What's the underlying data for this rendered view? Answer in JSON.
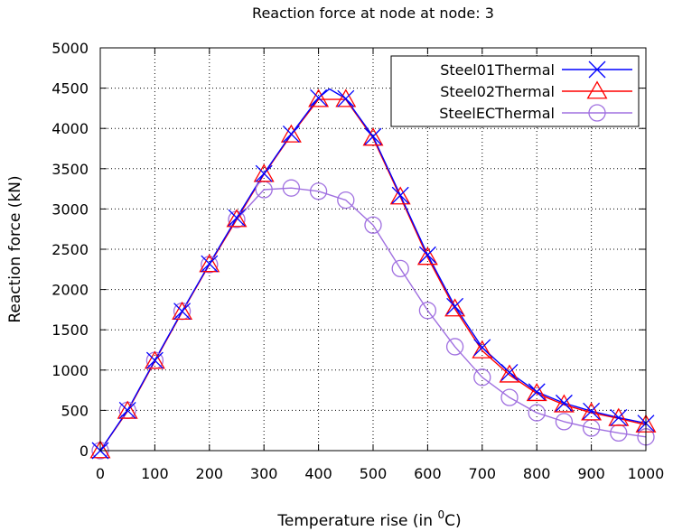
{
  "chart_data": {
    "type": "line",
    "title": "Reaction force at node at node: 3",
    "xlabel_prefix": "Temperature rise (in ",
    "xlabel_sup": "0",
    "xlabel_suffix": "C)",
    "ylabel": "Reaction force  (kN)",
    "xlim": [
      0,
      1000
    ],
    "ylim": [
      0,
      5000
    ],
    "xticks": [
      0,
      100,
      200,
      300,
      400,
      500,
      600,
      700,
      800,
      900,
      1000
    ],
    "yticks": [
      0,
      500,
      1000,
      1500,
      2000,
      2500,
      3000,
      3500,
      4000,
      4500,
      5000
    ],
    "grid": true,
    "legend_position": "top-right",
    "series": [
      {
        "name": "Steel01Thermal",
        "color": "#0000ff",
        "marker": "x-icon",
        "x": [
          0,
          50,
          100,
          150,
          200,
          250,
          300,
          350,
          400,
          420,
          450,
          500,
          550,
          600,
          650,
          700,
          750,
          800,
          850,
          900,
          950,
          1000
        ],
        "y": [
          0,
          500,
          1120,
          1730,
          2320,
          2890,
          3440,
          3930,
          4380,
          4490,
          4370,
          3900,
          3170,
          2430,
          1790,
          1280,
          970,
          730,
          590,
          490,
          410,
          340
        ]
      },
      {
        "name": "Steel02Thermal",
        "color": "#ff0000",
        "marker": "triangle-icon",
        "x": [
          0,
          50,
          100,
          150,
          200,
          250,
          300,
          350,
          400,
          450,
          500,
          550,
          600,
          650,
          700,
          750,
          800,
          850,
          900,
          950,
          1000
        ],
        "y": [
          0,
          490,
          1110,
          1720,
          2310,
          2870,
          3430,
          3920,
          4360,
          4360,
          3880,
          3150,
          2400,
          1760,
          1240,
          940,
          710,
          570,
          470,
          400,
          320
        ]
      },
      {
        "name": "SteelECThermal",
        "color": "#a070e0",
        "marker": "circle-icon",
        "x": [
          0,
          50,
          100,
          150,
          200,
          250,
          300,
          350,
          400,
          450,
          500,
          550,
          600,
          650,
          700,
          750,
          800,
          850,
          900,
          950,
          1000
        ],
        "y": [
          0,
          500,
          1120,
          1730,
          2310,
          2870,
          3240,
          3260,
          3220,
          3110,
          2800,
          2260,
          1740,
          1290,
          910,
          660,
          470,
          360,
          280,
          220,
          170
        ]
      }
    ]
  }
}
